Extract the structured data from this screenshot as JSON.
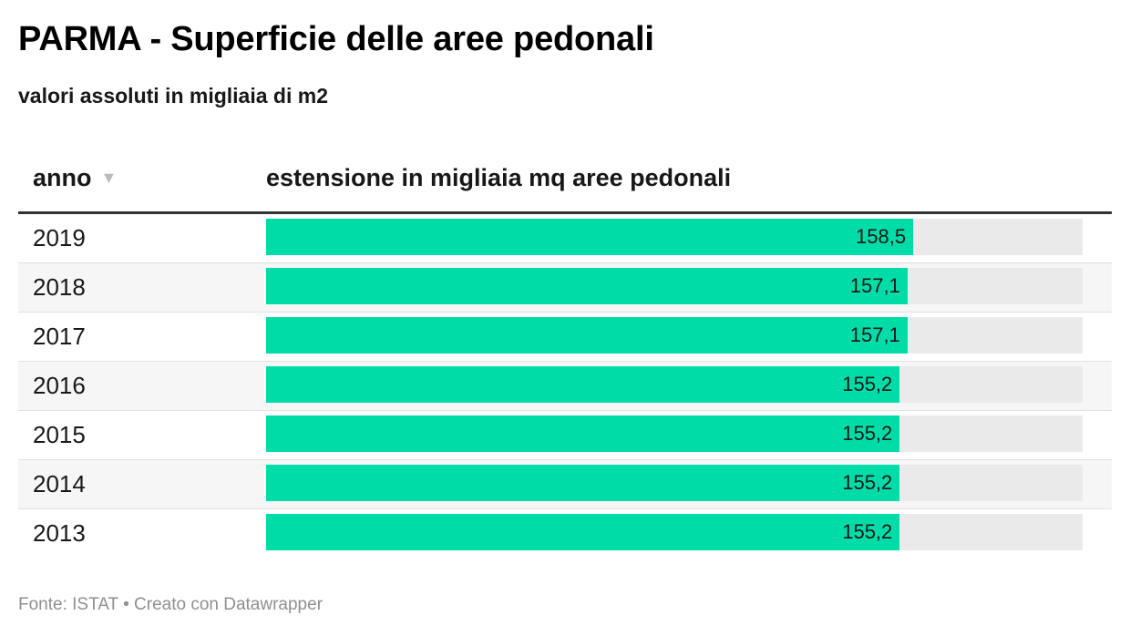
{
  "header": {
    "title": "PARMA - Superficie delle aree pedonali",
    "subtitle": "valori assoluti in migliaia di m2"
  },
  "table": {
    "col_year": "anno",
    "sort_icon": "▼",
    "col_value": "estensione in migliaia mq aree pedonali"
  },
  "footer": {
    "source_text": "Fonte: ISTAT • Creato con Datawrapper"
  },
  "colors": {
    "bar": "#00dca8",
    "track": "#eaeaea"
  },
  "chart_data": {
    "type": "table",
    "title": "PARMA - Superficie delle aree pedonali",
    "subtitle": "valori assoluti in migliaia di m2",
    "columns": [
      "anno",
      "estensione in migliaia mq aree pedonali"
    ],
    "sort": {
      "column": "anno",
      "order": "descending"
    },
    "value_max": 200,
    "rows": [
      {
        "year": "2019",
        "value": 158.5,
        "label": "158,5"
      },
      {
        "year": "2018",
        "value": 157.1,
        "label": "157,1"
      },
      {
        "year": "2017",
        "value": 157.1,
        "label": "157,1"
      },
      {
        "year": "2016",
        "value": 155.2,
        "label": "155,2"
      },
      {
        "year": "2015",
        "value": 155.2,
        "label": "155,2"
      },
      {
        "year": "2014",
        "value": 155.2,
        "label": "155,2"
      },
      {
        "year": "2013",
        "value": 155.2,
        "label": "155,2"
      }
    ]
  }
}
